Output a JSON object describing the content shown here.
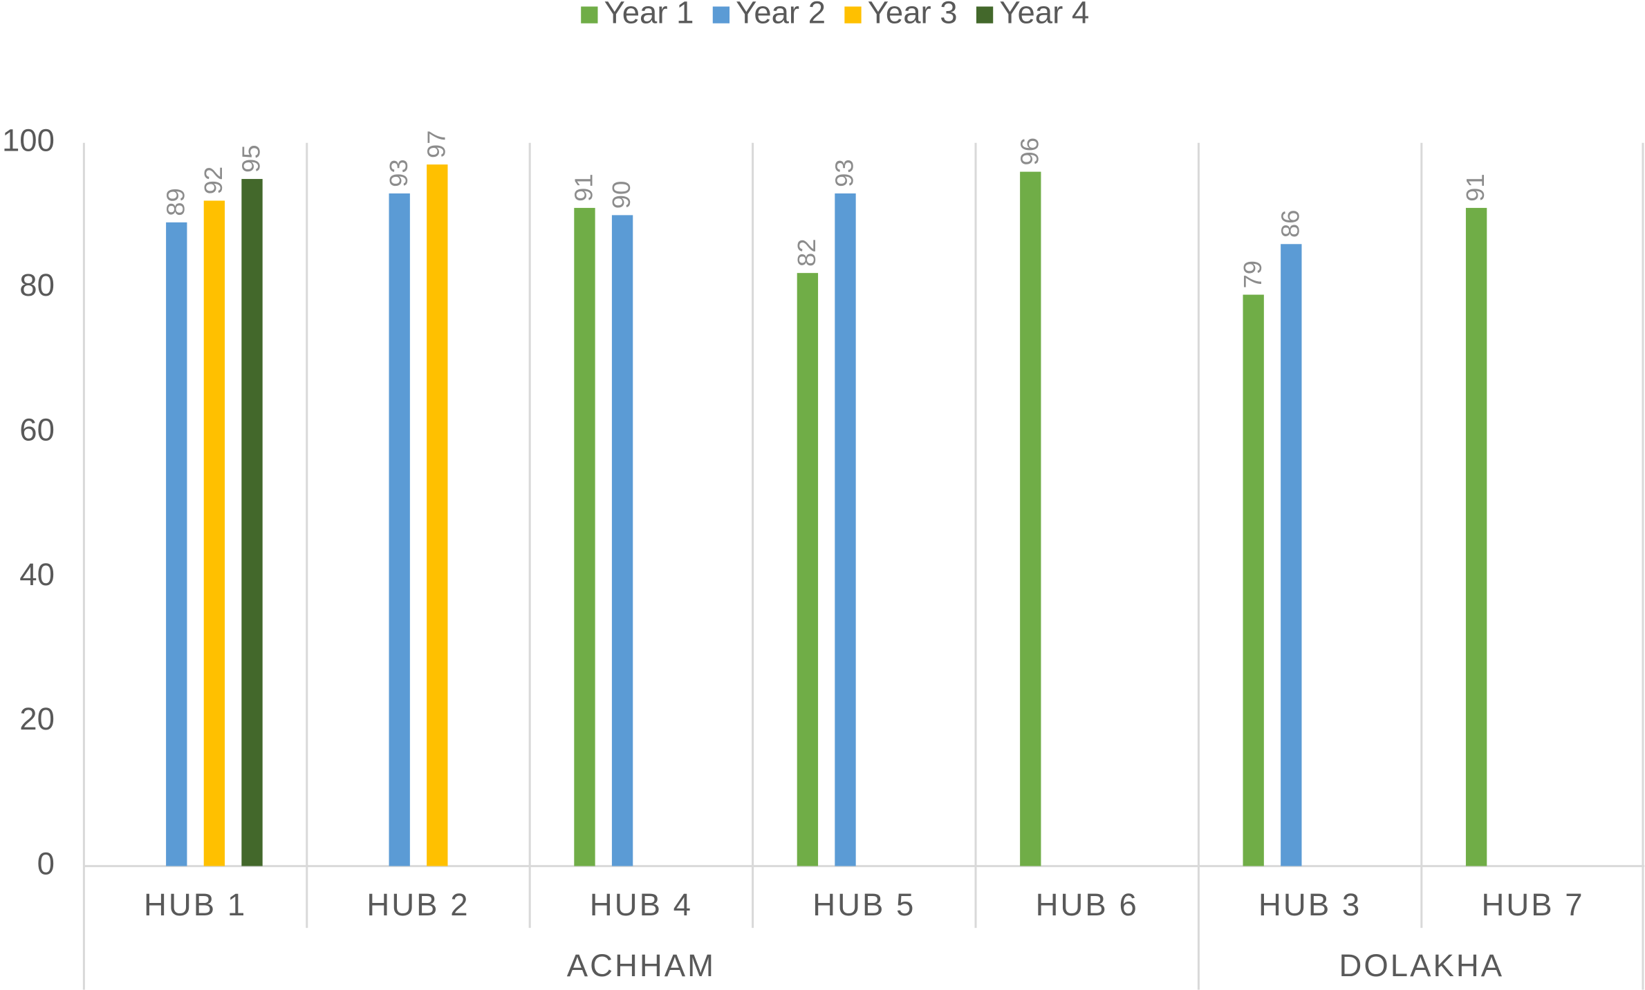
{
  "chart_data": {
    "type": "bar",
    "groups": [
      {
        "label": "ACHHAM",
        "categories": [
          "HUB 1",
          "HUB 2",
          "HUB 4",
          "HUB 5",
          "HUB 6"
        ]
      },
      {
        "label": "DOLAKHA",
        "categories": [
          "HUB 3",
          "HUB 7"
        ]
      }
    ],
    "series": [
      {
        "name": "Year 1",
        "color": "#70ad47",
        "values": [
          null,
          null,
          91,
          82,
          96,
          79,
          91
        ]
      },
      {
        "name": "Year 2",
        "color": "#5b9bd5",
        "values": [
          89,
          93,
          90,
          93,
          null,
          86,
          null
        ]
      },
      {
        "name": "Year 3",
        "color": "#ffc000",
        "values": [
          92,
          97,
          null,
          null,
          null,
          null,
          null
        ]
      },
      {
        "name": "Year 4",
        "color": "#43682b",
        "values": [
          95,
          null,
          null,
          null,
          null,
          null,
          null
        ]
      }
    ],
    "ylim": [
      0,
      100
    ],
    "yticks": [
      0,
      20,
      40,
      60,
      80,
      100
    ],
    "grid": false,
    "legend": "top"
  }
}
